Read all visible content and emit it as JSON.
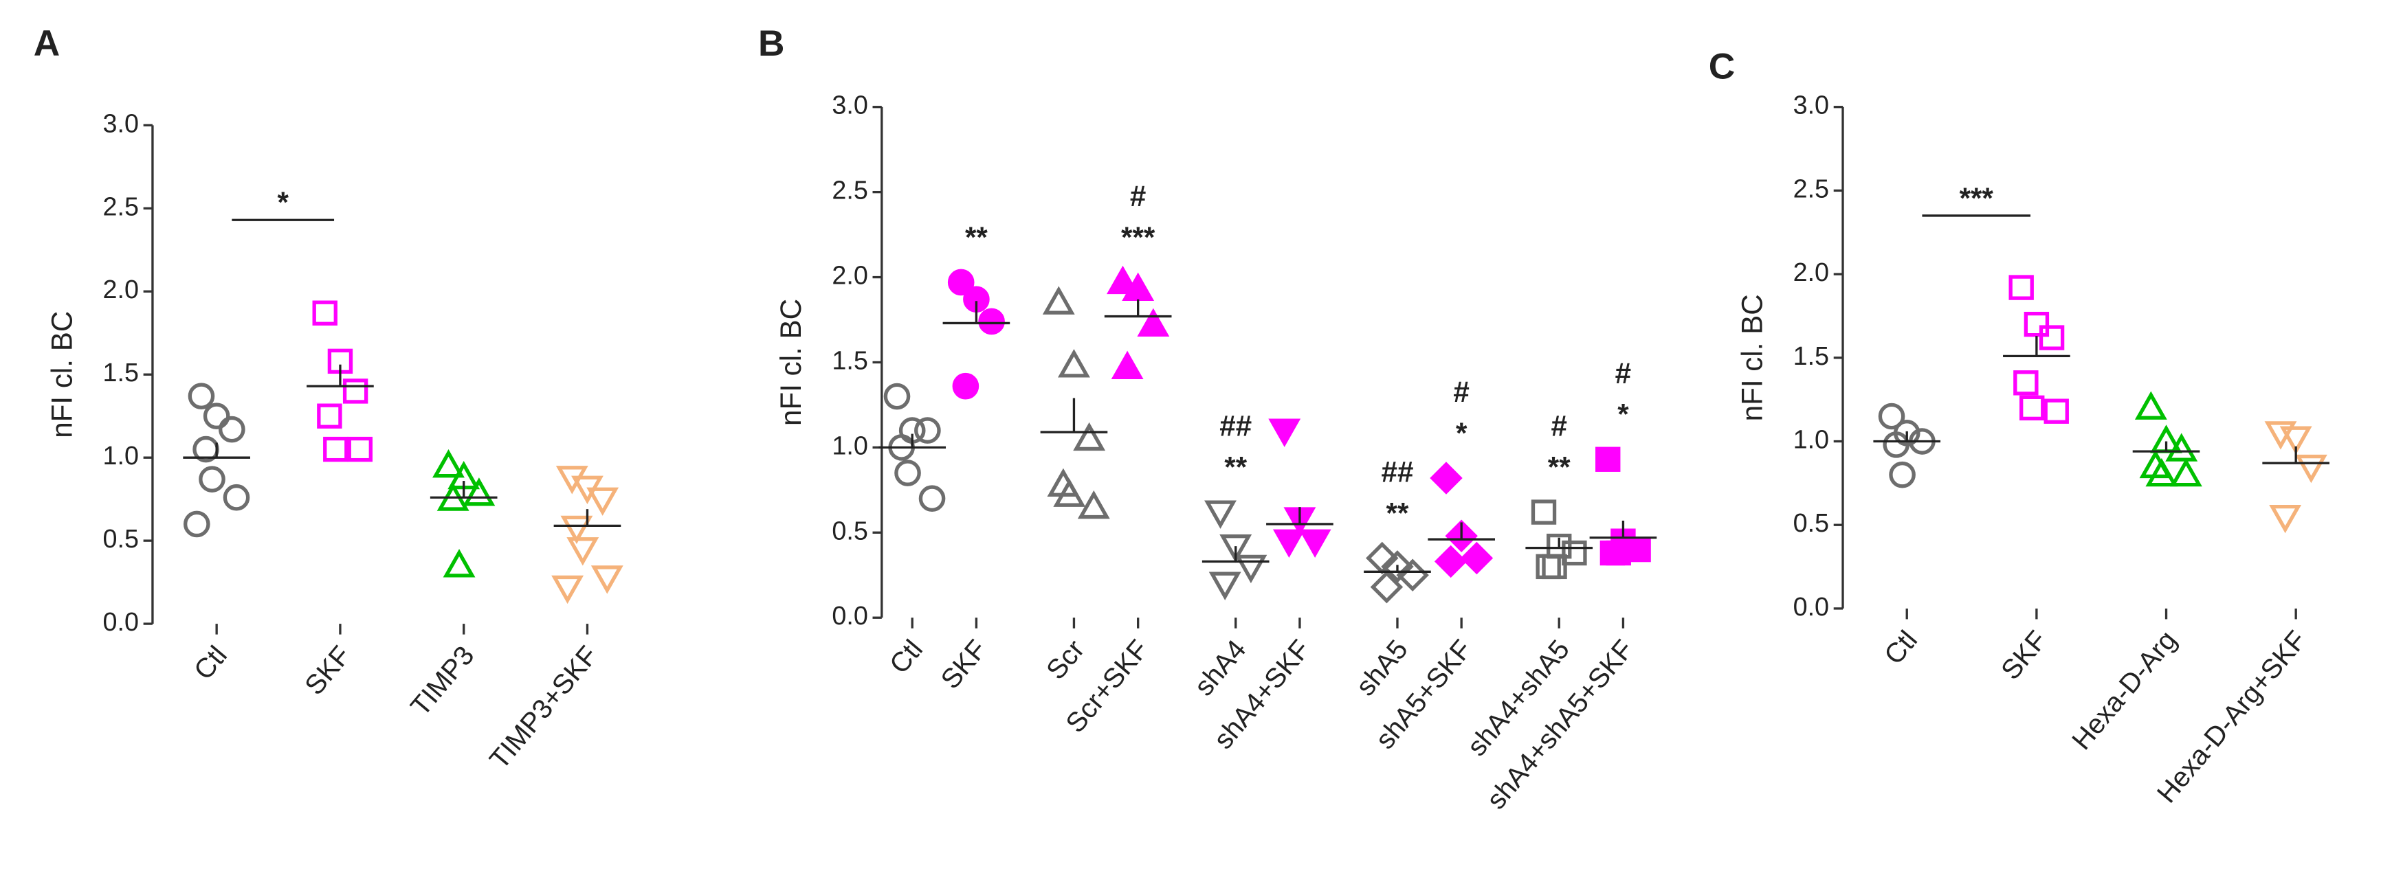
{
  "chart_data": [
    {
      "type": "dot",
      "panel": "A",
      "ylabel": "nFI cl. BC",
      "ylim": [
        0,
        3
      ],
      "yticks": [
        {
          "value": 0,
          "label": "0.0"
        },
        {
          "value": 0.5,
          "label": "0.5"
        },
        {
          "value": 1,
          "label": "1.0"
        },
        {
          "value": 1.5,
          "label": "1.5"
        },
        {
          "value": 2,
          "label": "2.0"
        },
        {
          "value": 2.5,
          "label": "2.5"
        },
        {
          "value": 3,
          "label": "3.0"
        }
      ],
      "bracket": {
        "label": "*",
        "y": 2.43
      },
      "groups": [
        {
          "category": "Ctl",
          "marker": "circle",
          "color": "#6d6d6d",
          "filled": false,
          "values": [
            1.37,
            1.25,
            1.17,
            1.05,
            0.87,
            0.76,
            0.6
          ],
          "mean": 1.0,
          "sem": 0.09
        },
        {
          "category": "SKF",
          "marker": "square",
          "color": "#ff00ff",
          "filled": false,
          "values": [
            1.87,
            1.58,
            1.4,
            1.25,
            1.05,
            1.05
          ],
          "mean": 1.43,
          "sem": 0.13
        },
        {
          "category": "TIMP3",
          "marker": "triangle-up",
          "color": "#00c000",
          "filled": false,
          "values": [
            0.95,
            0.88,
            0.78,
            0.75,
            0.35
          ],
          "mean": 0.76,
          "sem": 0.1
        },
        {
          "category": "TIMP3+SKF",
          "marker": "triangle-down",
          "color": "#f5b27a",
          "filled": false,
          "values": [
            0.88,
            0.82,
            0.75,
            0.58,
            0.45,
            0.28,
            0.22
          ],
          "mean": 0.59,
          "sem": 0.1
        }
      ]
    },
    {
      "type": "dot",
      "panel": "B",
      "ylabel": "nFI cl. BC",
      "ylim": [
        0,
        3
      ],
      "yticks": [
        {
          "value": 0,
          "label": "0.0"
        },
        {
          "value": 0.5,
          "label": "0.5"
        },
        {
          "value": 1,
          "label": "1.0"
        },
        {
          "value": 1.5,
          "label": "1.5"
        },
        {
          "value": 2,
          "label": "2.0"
        },
        {
          "value": 2.5,
          "label": "2.5"
        },
        {
          "value": 3,
          "label": "3.0"
        }
      ],
      "groups": [
        {
          "category": "Ctl",
          "marker": "circle",
          "color": "#6d6d6d",
          "filled": false,
          "values": [
            1.3,
            1.1,
            1.1,
            1.0,
            0.85,
            0.7
          ],
          "mean": 1.0,
          "sem": 0.08
        },
        {
          "category": "SKF",
          "marker": "circle",
          "color": "#ff00ff",
          "filled": true,
          "values": [
            1.97,
            1.87,
            1.74,
            1.36
          ],
          "mean": 1.73,
          "sem": 0.13,
          "labels": [
            "**"
          ]
        },
        {
          "category": "Scr",
          "marker": "triangle-up",
          "color": "#6d6d6d",
          "filled": false,
          "values": [
            1.85,
            1.48,
            1.05,
            0.78,
            0.72,
            0.65
          ],
          "mean": 1.09,
          "sem": 0.2
        },
        {
          "category": "Scr+SKF",
          "marker": "triangle-up",
          "color": "#ff00ff",
          "filled": true,
          "values": [
            1.97,
            1.93,
            1.72,
            1.47
          ],
          "mean": 1.77,
          "sem": 0.1,
          "labels": [
            "#",
            "***"
          ]
        },
        {
          "category": "shA4",
          "marker": "triangle-down",
          "color": "#6d6d6d",
          "filled": false,
          "values": [
            0.62,
            0.42,
            0.3,
            0.2
          ],
          "mean": 0.33,
          "sem": 0.09,
          "labels": [
            "##",
            "**"
          ]
        },
        {
          "category": "shA4+SKF",
          "marker": "triangle-down",
          "color": "#ff00ff",
          "filled": true,
          "values": [
            1.1,
            0.58,
            0.45,
            0.45
          ],
          "mean": 0.55,
          "sem": 0.1
        },
        {
          "category": "shA5",
          "marker": "diamond",
          "color": "#6d6d6d",
          "filled": false,
          "values": [
            0.35,
            0.3,
            0.25,
            0.18
          ],
          "mean": 0.27,
          "sem": 0.04,
          "labels": [
            "##",
            "**"
          ]
        },
        {
          "category": "shA5+SKF",
          "marker": "diamond",
          "color": "#ff00ff",
          "filled": true,
          "values": [
            0.82,
            0.48,
            0.35,
            0.33
          ],
          "mean": 0.46,
          "sem": 0.1,
          "labels": [
            "#",
            "*"
          ]
        },
        {
          "category": "shA4+shA5",
          "marker": "square",
          "color": "#6d6d6d",
          "filled": false,
          "values": [
            0.62,
            0.42,
            0.38,
            0.3,
            0.3
          ],
          "mean": 0.41,
          "sem": 0.06,
          "labels": [
            "#",
            "**"
          ]
        },
        {
          "category": "shA4+shA5+SKF",
          "marker": "square",
          "color": "#ff00ff",
          "filled": true,
          "values": [
            0.93,
            0.45,
            0.4,
            0.38,
            0.38
          ],
          "mean": 0.47,
          "sem": 0.1,
          "labels": [
            "#",
            "*"
          ]
        }
      ]
    },
    {
      "type": "dot",
      "panel": "C",
      "ylabel": "nFI cl. BC",
      "ylim": [
        0,
        3
      ],
      "yticks": [
        {
          "value": 0,
          "label": "0.0"
        },
        {
          "value": 0.5,
          "label": "0.5"
        },
        {
          "value": 1,
          "label": "1.0"
        },
        {
          "value": 1.5,
          "label": "1.5"
        },
        {
          "value": 2,
          "label": "2.0"
        },
        {
          "value": 2.5,
          "label": "2.5"
        },
        {
          "value": 3,
          "label": "3.0"
        }
      ],
      "bracket": {
        "label": "***",
        "y": 2.35
      },
      "groups": [
        {
          "category": "Ctl",
          "marker": "circle",
          "color": "#6d6d6d",
          "filled": false,
          "values": [
            1.15,
            1.05,
            1.0,
            0.98,
            0.8
          ],
          "mean": 1.0,
          "sem": 0.06
        },
        {
          "category": "SKF",
          "marker": "square",
          "color": "#ff00ff",
          "filled": false,
          "values": [
            1.92,
            1.7,
            1.62,
            1.35,
            1.2,
            1.18
          ],
          "mean": 1.51,
          "sem": 0.12
        },
        {
          "category": "Hexa-D-Arg",
          "marker": "triangle-up",
          "color": "#00c000",
          "filled": false,
          "values": [
            1.2,
            1.0,
            0.95,
            0.85,
            0.8,
            0.8
          ],
          "mean": 0.94,
          "sem": 0.06
        },
        {
          "category": "Hexa-D-Arg+SKF",
          "marker": "triangle-down",
          "color": "#f5b27a",
          "filled": false,
          "values": [
            1.05,
            1.02,
            0.85,
            0.55
          ],
          "mean": 0.87,
          "sem": 0.1
        }
      ]
    }
  ]
}
